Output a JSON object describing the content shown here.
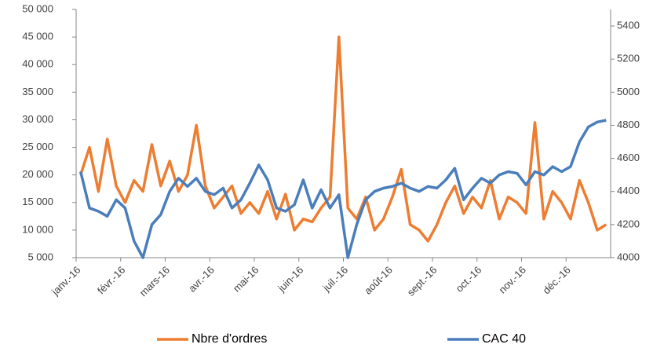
{
  "chart_data": {
    "type": "line",
    "categories": [
      "janv.-16",
      null,
      null,
      null,
      null,
      "févr.-16",
      null,
      null,
      null,
      null,
      "mars-16",
      null,
      null,
      null,
      null,
      "avr.-16",
      null,
      null,
      null,
      null,
      "mai-16",
      null,
      null,
      null,
      null,
      "juin-16",
      null,
      null,
      null,
      null,
      "juil.-16",
      null,
      null,
      null,
      null,
      "août-16",
      null,
      null,
      null,
      null,
      "sept.-16",
      null,
      null,
      null,
      null,
      "oct.-16",
      null,
      null,
      null,
      null,
      "nov.-16",
      null,
      null,
      null,
      null,
      "déc.-16",
      null,
      null,
      null,
      null
    ],
    "series": [
      {
        "name": "Nbre d'ordres",
        "color": "#ed7d31",
        "values": [
          20000,
          25000,
          17000,
          26500,
          18000,
          15000,
          19000,
          17000,
          25500,
          18000,
          22500,
          17000,
          20000,
          29000,
          18000,
          14000,
          16000,
          18000,
          13000,
          15000,
          13000,
          17000,
          12000,
          16500,
          10000,
          12000,
          11500,
          14000,
          16000,
          45000,
          14000,
          12000,
          16000,
          10000,
          12000,
          16000,
          21000,
          11000,
          10000,
          8000,
          11000,
          15000,
          18000,
          13000,
          16000,
          14000,
          19000,
          12000,
          16000,
          15000,
          13000,
          29500,
          12000,
          17000,
          15000,
          12000,
          19000,
          15000,
          10000,
          11000
        ]
      },
      {
        "name": "CAC 40",
        "color": "#4a7ebb",
        "axis": "y2",
        "values": [
          4520,
          4300,
          4280,
          4250,
          4350,
          4300,
          4100,
          4000,
          4200,
          4260,
          4400,
          4480,
          4430,
          4480,
          4400,
          4380,
          4420,
          4300,
          4350,
          4450,
          4560,
          4470,
          4300,
          4280,
          4320,
          4470,
          4300,
          4410,
          4300,
          4380,
          4000,
          4200,
          4350,
          4400,
          4420,
          4430,
          4450,
          4420,
          4400,
          4430,
          4420,
          4470,
          4540,
          4350,
          4420,
          4480,
          4450,
          4500,
          4520,
          4510,
          4440,
          4520,
          4500,
          4550,
          4520,
          4550,
          4700,
          4790,
          4820,
          4830
        ]
      }
    ],
    "ylim": [
      5000,
      50000
    ],
    "yticks": [
      {
        "value": 5000,
        "label": "5 000"
      },
      {
        "value": 10000,
        "label": "10 000"
      },
      {
        "value": 15000,
        "label": "15 000"
      },
      {
        "value": 20000,
        "label": "20 000"
      },
      {
        "value": 25000,
        "label": "25 000"
      },
      {
        "value": 30000,
        "label": "30 000"
      },
      {
        "value": 35000,
        "label": "35 000"
      },
      {
        "value": 40000,
        "label": "40 000"
      },
      {
        "value": 45000,
        "label": "45 000"
      },
      {
        "value": 50000,
        "label": "50 000"
      }
    ],
    "y2lim": [
      4000,
      5500
    ],
    "y2ticks": [
      4000,
      4200,
      4400,
      4600,
      4800,
      5000,
      5200,
      5400
    ],
    "grid": false,
    "legend": "bottom"
  }
}
